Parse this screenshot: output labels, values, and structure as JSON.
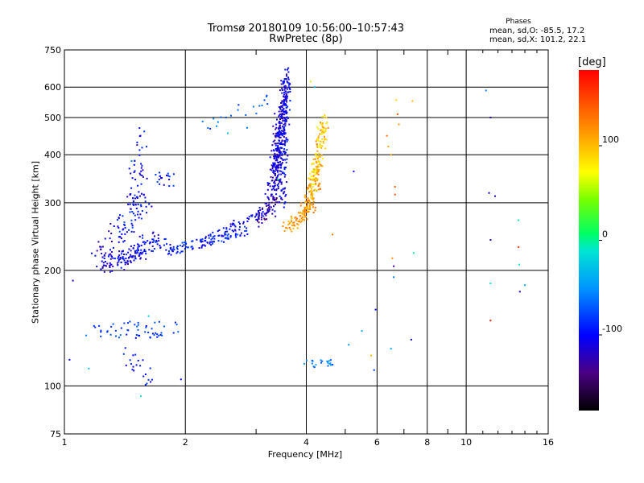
{
  "chart_data": {
    "type": "scatter",
    "title": "Tromsø 20180109 10:56:00–10:57:43",
    "subtitle": "RwPretec (8p)",
    "stats": {
      "heading": "Phases",
      "o_line": "mean, sd,O: -85.5, 17.2",
      "x_line": "mean, sd,X: 101.2, 22.1"
    },
    "xlabel": "Frequency [MHz]",
    "ylabel": "Stationary phase Virtual Height [km]",
    "x_scale": "log",
    "y_scale": "log",
    "xlim": [
      1,
      16
    ],
    "ylim": [
      75,
      750
    ],
    "x_ticks": [
      1,
      2,
      4,
      6,
      8,
      10,
      16
    ],
    "x_minor": [
      3,
      5,
      7,
      9
    ],
    "y_ticks": [
      75,
      100,
      200,
      300,
      400,
      500,
      600,
      750
    ],
    "grid": true,
    "colorbar": {
      "label": "[deg]",
      "min": -180,
      "max": 180,
      "ticks": [
        100,
        0,
        -100
      ],
      "colormap": "rainbow"
    },
    "series": [
      {
        "traces": [
          [
            1.26,
            205,
            1.55,
            225,
            0.06,
            0.045,
            70,
            -110
          ],
          [
            1.45,
            260,
            1.56,
            420,
            0.04,
            0.16,
            60,
            -105
          ],
          [
            1.22,
            210,
            1.38,
            255,
            0.06,
            0.06,
            45,
            -115
          ],
          [
            1.33,
            235,
            1.6,
            310,
            0.05,
            0.09,
            40,
            -95
          ],
          [
            1.36,
            210,
            1.75,
            240,
            0.04,
            0.04,
            45,
            -100
          ],
          [
            1.6,
            245,
            1.85,
            225,
            0.05,
            0.03,
            35,
            -100
          ],
          [
            1.7,
            350,
            1.85,
            340,
            0.04,
            0.04,
            18,
            -95
          ],
          [
            1.85,
            225,
            2.9,
            255,
            0.02,
            0.03,
            90,
            -90
          ],
          [
            2.2,
            235,
            3.15,
            285,
            0.02,
            0.03,
            60,
            -100
          ],
          [
            3.0,
            265,
            3.45,
            320,
            0.03,
            0.03,
            55,
            -125
          ],
          [
            3.25,
            290,
            3.45,
            520,
            0.03,
            0.08,
            100,
            -118
          ],
          [
            3.35,
            320,
            3.55,
            645,
            0.025,
            0.06,
            160,
            -112
          ],
          [
            3.4,
            330,
            3.58,
            650,
            0.025,
            0.06,
            110,
            -108
          ],
          [
            3.5,
            300,
            3.62,
            640,
            0.015,
            0.05,
            70,
            -100
          ],
          [
            3.55,
            255,
            4.2,
            300,
            0.03,
            0.03,
            70,
            115
          ],
          [
            3.9,
            270,
            4.3,
            360,
            0.03,
            0.05,
            70,
            112
          ],
          [
            4.05,
            300,
            4.45,
            470,
            0.025,
            0.06,
            100,
            105
          ],
          [
            4.15,
            330,
            4.45,
            510,
            0.025,
            0.05,
            55,
            80
          ],
          [
            1.18,
            140,
            1.85,
            140,
            0.06,
            0.05,
            55,
            -80
          ],
          [
            1.45,
            120,
            1.65,
            105,
            0.04,
            0.06,
            22,
            -95
          ],
          [
            3.95,
            115,
            4.8,
            115,
            0.05,
            0.03,
            22,
            -60
          ],
          [
            2.05,
            465,
            3.3,
            565,
            0.03,
            0.05,
            20,
            -70
          ]
        ]
      },
      {
        "points": [
          [
            1.05,
            188,
            -110
          ],
          [
            1.03,
            117,
            -100
          ],
          [
            1.15,
            111,
            -30
          ],
          [
            1.55,
            94,
            -10
          ],
          [
            1.47,
            385,
            -60
          ],
          [
            1.58,
            460,
            -80
          ],
          [
            1.62,
            152,
            -20
          ],
          [
            1.95,
            104,
            -100
          ],
          [
            4.1,
            620,
            60
          ],
          [
            4.2,
            600,
            -30
          ],
          [
            4.65,
            248,
            130
          ],
          [
            5.25,
            362,
            -110
          ],
          [
            5.5,
            139,
            -40
          ],
          [
            5.1,
            128,
            -50
          ],
          [
            5.95,
            158,
            -100
          ],
          [
            5.9,
            110,
            -80
          ],
          [
            5.8,
            120,
            100
          ],
          [
            6.35,
            448,
            135
          ],
          [
            6.4,
            420,
            110
          ],
          [
            6.5,
            400,
            110
          ],
          [
            6.55,
            215,
            120
          ],
          [
            6.6,
            205,
            -130
          ],
          [
            6.6,
            192,
            -60
          ],
          [
            6.65,
            330,
            140
          ],
          [
            6.65,
            315,
            145
          ],
          [
            6.7,
            555,
            90
          ],
          [
            6.75,
            510,
            140
          ],
          [
            6.8,
            480,
            115
          ],
          [
            6.5,
            125,
            -40
          ],
          [
            7.35,
            552,
            100
          ],
          [
            7.4,
            222,
            0
          ],
          [
            7.3,
            132,
            -100
          ],
          [
            11.2,
            588,
            -60
          ],
          [
            11.5,
            500,
            -120
          ],
          [
            11.4,
            318,
            -110
          ],
          [
            11.8,
            312,
            -120
          ],
          [
            11.5,
            240,
            -120
          ],
          [
            11.5,
            185,
            -10
          ],
          [
            11.5,
            148,
            170
          ],
          [
            13.5,
            270,
            0
          ],
          [
            13.5,
            230,
            160
          ],
          [
            13.55,
            207,
            -10
          ],
          [
            14.0,
            183,
            -40
          ],
          [
            13.6,
            176,
            -120
          ],
          [
            3.4,
            345,
            20
          ],
          [
            2.55,
            455,
            -30
          ],
          [
            2.85,
            470,
            -60
          ]
        ]
      }
    ]
  }
}
